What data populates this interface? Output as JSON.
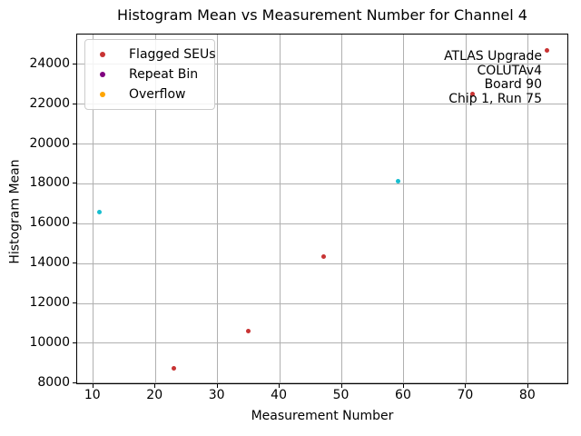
{
  "chart_data": {
    "type": "scatter",
    "title": "Histogram Mean vs Measurement Number for Channel 4",
    "xlabel": "Measurement Number",
    "ylabel": "Histogram Mean",
    "xlim": [
      7.4,
      86.6
    ],
    "ylim": [
      7900,
      25500
    ],
    "xticks": [
      10,
      20,
      30,
      40,
      50,
      60,
      70,
      80
    ],
    "yticks": [
      8000,
      10000,
      12000,
      14000,
      16000,
      18000,
      20000,
      22000,
      24000
    ],
    "grid": true,
    "grid_color": "#b0b0b0",
    "legend_position": "upper left",
    "series": [
      {
        "name": "",
        "color": "#17becf",
        "in_legend": false,
        "points": [
          [
            11,
            16600
          ],
          [
            59,
            18150
          ]
        ]
      },
      {
        "name": "Flagged SEUs",
        "color": "#c83333",
        "in_legend": true,
        "points": [
          [
            23,
            8750
          ],
          [
            35,
            10600
          ],
          [
            47,
            14350
          ],
          [
            71,
            22500
          ],
          [
            83,
            24700
          ]
        ]
      },
      {
        "name": "Repeat Bin",
        "color": "#800080",
        "in_legend": true,
        "points": []
      },
      {
        "name": "Overflow",
        "color": "#ffa500",
        "in_legend": true,
        "points": []
      }
    ],
    "annotation": {
      "lines": [
        "ATLAS Upgrade",
        "COLUTAv4",
        "Board 90",
        "Chip 1, Run 75"
      ]
    }
  }
}
